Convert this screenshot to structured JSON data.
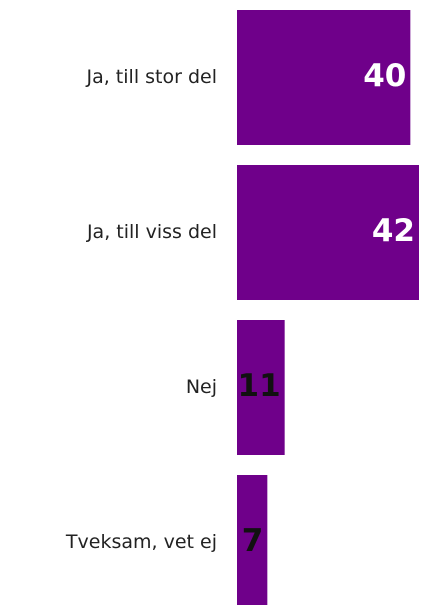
{
  "chart_data": {
    "type": "bar",
    "orientation": "horizontal",
    "categories": [
      "Ja, till stor del",
      "Ja, till viss del",
      "Nej",
      "Tveksam, vet ej"
    ],
    "values": [
      40,
      42,
      11,
      7
    ],
    "color": "#6f008a"
  }
}
